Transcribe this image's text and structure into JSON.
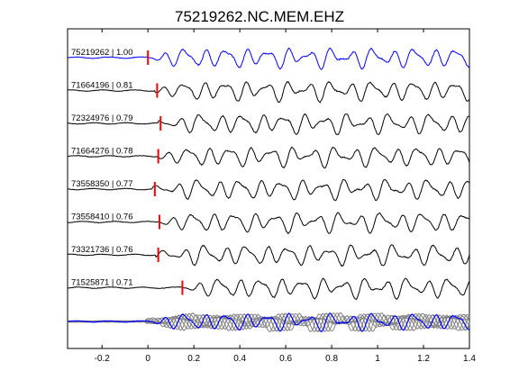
{
  "chart_data": {
    "type": "line",
    "title": "75219262.NC.MEM.EHZ",
    "xlabel": "",
    "ylabel": "",
    "xlim": [
      -0.35,
      1.4
    ],
    "x_ticks": [
      -0.2,
      0,
      0.2,
      0.4,
      0.6,
      0.8,
      1,
      1.2,
      1.4
    ],
    "x_tick_labels": [
      "-0.2",
      "0",
      "0.2",
      "0.4",
      "0.6",
      "0.8",
      "1",
      "1.2",
      "1.4"
    ],
    "grid": false,
    "colors": {
      "reference": "#0000ff",
      "trace": "#000000",
      "pick": "#ff0000",
      "stack_trace": "#808080",
      "stack_reference": "#0000ff"
    },
    "traces": [
      {
        "id": "75219262",
        "label": "75219262 | 1.00",
        "correlation": 1.0,
        "pick_time": 0.0,
        "color": "#0000ff"
      },
      {
        "id": "71664196",
        "label": "71664196 | 0.81",
        "correlation": 0.81,
        "pick_time": 0.04,
        "color": "#000000"
      },
      {
        "id": "72324976",
        "label": "72324976 | 0.79",
        "correlation": 0.79,
        "pick_time": 0.055,
        "color": "#000000"
      },
      {
        "id": "71664276",
        "label": "71664276 | 0.78",
        "correlation": 0.78,
        "pick_time": 0.045,
        "color": "#000000"
      },
      {
        "id": "73558350",
        "label": "73558350 | 0.77",
        "correlation": 0.77,
        "pick_time": 0.03,
        "color": "#000000"
      },
      {
        "id": "73558410",
        "label": "73558410 | 0.76",
        "correlation": 0.76,
        "pick_time": 0.05,
        "color": "#000000"
      },
      {
        "id": "73321736",
        "label": "73321736 | 0.76",
        "correlation": 0.76,
        "pick_time": 0.045,
        "color": "#000000"
      },
      {
        "id": "71525871",
        "label": "71525871 | 0.71",
        "correlation": 0.71,
        "pick_time": 0.15,
        "color": "#000000"
      }
    ],
    "stack_panel": {
      "overlay_count": 8,
      "reference_color": "#0000ff",
      "overlay_color": "#808080"
    }
  }
}
